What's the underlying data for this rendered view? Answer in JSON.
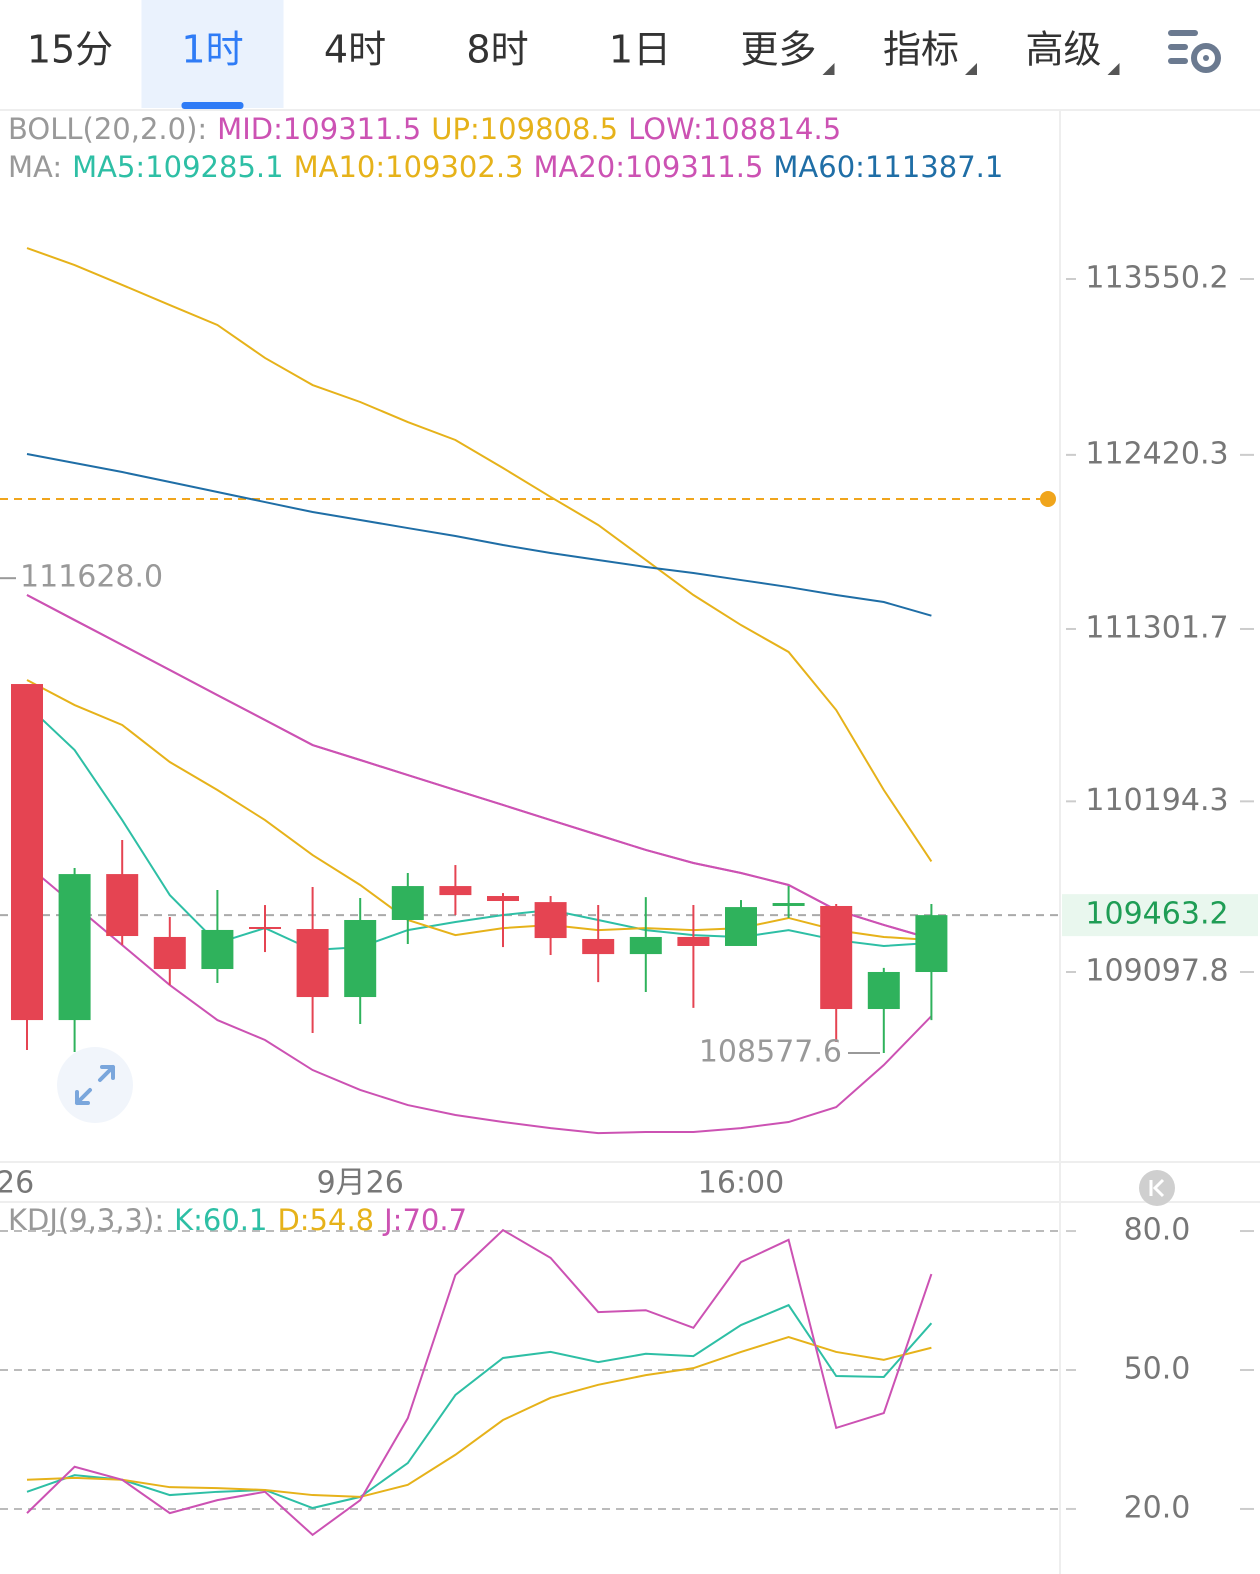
{
  "tabs": [
    {
      "label": "15分"
    },
    {
      "label": "1时"
    },
    {
      "label": "4时"
    },
    {
      "label": "8时"
    },
    {
      "label": "1日"
    },
    {
      "label": "更多",
      "menu": true
    },
    {
      "label": "指标",
      "menu": true
    },
    {
      "label": "高级",
      "menu": true
    }
  ],
  "selected_tab": 1,
  "chart_data": [
    {
      "type": "candlestick",
      "categories": [
        null,
        null,
        null,
        null,
        null,
        null,
        null,
        "9月26",
        null,
        null,
        null,
        null,
        null,
        null,
        null,
        "16:00",
        null,
        null,
        null,
        null
      ],
      "left_edge_label": "26",
      "open": [
        110948,
        108789,
        109727,
        109323,
        109117,
        109387,
        109374,
        108937,
        109432,
        109650,
        109586,
        109547,
        109310,
        109213,
        109323,
        109265,
        109522,
        109522,
        108860,
        109097.8
      ],
      "high": [
        110948,
        109766,
        109946,
        109451,
        109625,
        109528,
        109644,
        109573,
        109734,
        109785,
        109605,
        109586,
        109528,
        109579,
        109528,
        109560,
        109650,
        109535,
        109124,
        109535
      ],
      "low": [
        108597,
        108584,
        109271,
        109014,
        109027,
        109226,
        108706,
        108764,
        109278,
        109464,
        109258,
        109207,
        109033,
        108969,
        108867,
        109265,
        109445,
        108648,
        108577.6,
        108789
      ],
      "close": [
        108789,
        109727,
        109329,
        109117,
        109368,
        109380,
        108937,
        109432,
        109650,
        109592,
        109554,
        109316,
        109213,
        109323,
        109265,
        109515,
        109541,
        108860,
        109098,
        109463.2
      ],
      "up_color": "#2fb25c",
      "down_color": "#e54452",
      "boll": {
        "label": "BOLL(20,2.0):",
        "series": [
          {
            "name": "MID:109311.5",
            "color": "#cc52b3",
            "values": [
              111520,
              111359,
              111199,
              111038,
              110877,
              110717,
              110556,
              110460,
              110363,
              110267,
              110171,
              110074,
              109978,
              109882,
              109798,
              109734,
              109657,
              109496,
              109400,
              109311.5
            ]
          },
          {
            "name": "UP:109808.5",
            "color": "#e6b21a",
            "values": [
              113749,
              113640,
              113512,
              113383,
              113255,
              113043,
              112869,
              112760,
              112631,
              112516,
              112336,
              112150,
              111970,
              111745,
              111520,
              111327,
              111154,
              110781,
              110267,
              109808.5
            ]
          },
          {
            "name": "LOW:108814.5",
            "color": "#cc52b3",
            "values": [
              109785,
              109528,
              109271,
              109014,
              108789,
              108661,
              108468,
              108340,
              108243,
              108179,
              108134,
              108095,
              108063,
              108070,
              108070,
              108095,
              108134,
              108230,
              108500,
              108814.5
            ]
          }
        ]
      },
      "ma": {
        "label": "MA:",
        "series": [
          {
            "name": "MA5:109285.1",
            "color": "#2ebfa5",
            "values": [
              110813,
              110524,
              110074,
              109592,
              109284,
              109380,
              109239,
              109258,
              109367,
              109419,
              109464,
              109496,
              109432,
              109367,
              109335,
              109322,
              109367,
              109303,
              109265,
              109285.1
            ]
          },
          {
            "name": "MA10:109302.3",
            "color": "#e6b21a",
            "values": [
              110974,
              110813,
              110685,
              110447,
              110267,
              110074,
              109849,
              109657,
              109432,
              109335,
              109380,
              109400,
              109367,
              109380,
              109367,
              109380,
              109445,
              109367,
              109323,
              109302.3
            ]
          },
          {
            "name": "MA20:109311.5",
            "color": "#cc52b3",
            "values": [
              111520,
              111359,
              111199,
              111038,
              110877,
              110717,
              110556,
              110460,
              110363,
              110267,
              110171,
              110074,
              109978,
              109882,
              109798,
              109734,
              109657,
              109496,
              109400,
              109311.5
            ]
          },
          {
            "name": "MA60:111387.1",
            "color": "#1f6ea6",
            "values": [
              112426,
              112368,
              112310,
              112246,
              112182,
              112117,
              112053,
              112002,
              111950,
              111899,
              111841,
              111790,
              111745,
              111700,
              111661,
              111616,
              111571,
              111520,
              111475,
              111387.1
            ]
          }
        ]
      },
      "ylim": [
        107890,
        114636
      ],
      "yticks": [
        113550.2,
        112420.3,
        111301.7,
        110194.3,
        109097.8
      ],
      "current_price": 109463.2,
      "alert_line": 112137,
      "alert_color": "#f0a51c",
      "annotations": [
        {
          "value": 111628,
          "label": "111628.0"
        },
        {
          "value": 108577.6,
          "label": "108577.6"
        }
      ]
    },
    {
      "type": "line",
      "label": "KDJ(9,3,3):",
      "series": [
        {
          "name": "K:60.1",
          "color": "#2ebfa5",
          "values": [
            23.7,
            27.3,
            26.3,
            23.0,
            23.7,
            24.1,
            20.2,
            22.6,
            29.9,
            44.6,
            52.6,
            53.9,
            51.7,
            53.5,
            53.0,
            59.7,
            64.0,
            48.7,
            48.5,
            60.1
          ]
        },
        {
          "name": "D:54.8",
          "color": "#e6b21a",
          "values": [
            26.3,
            26.7,
            26.3,
            24.7,
            24.5,
            24.1,
            23.0,
            22.6,
            25.2,
            31.7,
            39.2,
            44.0,
            46.8,
            48.9,
            50.4,
            53.9,
            57.1,
            53.9,
            52.2,
            54.8
          ]
        },
        {
          "name": "J:70.7",
          "color": "#cc52b3",
          "values": [
            19.1,
            29.1,
            26.3,
            19.1,
            21.9,
            23.7,
            14.4,
            21.9,
            39.6,
            70.5,
            80.2,
            74.2,
            62.5,
            62.9,
            59.1,
            73.3,
            78.1,
            37.5,
            40.7,
            70.7
          ]
        }
      ],
      "ylim": [
        7.9,
        86.7
      ],
      "yticks": [
        {
          "value": 80,
          "label": "80.0"
        },
        {
          "value": 50,
          "label": "50.0"
        },
        {
          "value": 20,
          "label": "20.0"
        }
      ],
      "grid": true
    }
  ]
}
